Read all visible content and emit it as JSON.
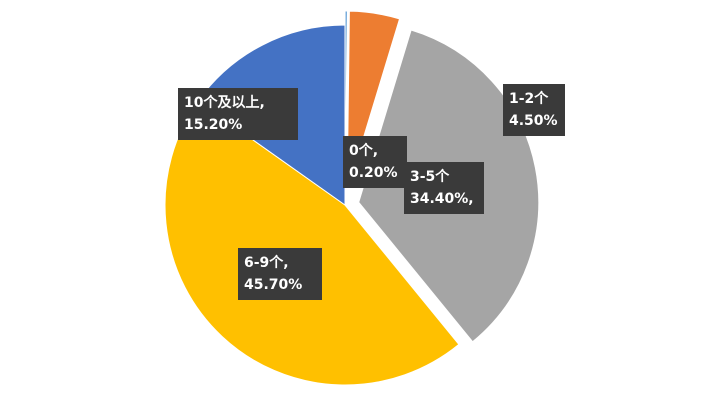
{
  "chart_data": {
    "type": "pie",
    "categories": [
      "0个,",
      "1-2个",
      "3-5个",
      "6-9个,",
      "10个及以上,"
    ],
    "values": [
      0.2,
      4.5,
      34.4,
      45.7,
      15.2
    ],
    "value_labels": [
      "0.20%",
      "4.50%",
      "34.40%,",
      "45.70%",
      "15.20%"
    ],
    "colors": [
      "#5b9bd5",
      "#ed7d31",
      "#a5a5a5",
      "#ffc000",
      "#4472c4"
    ]
  }
}
